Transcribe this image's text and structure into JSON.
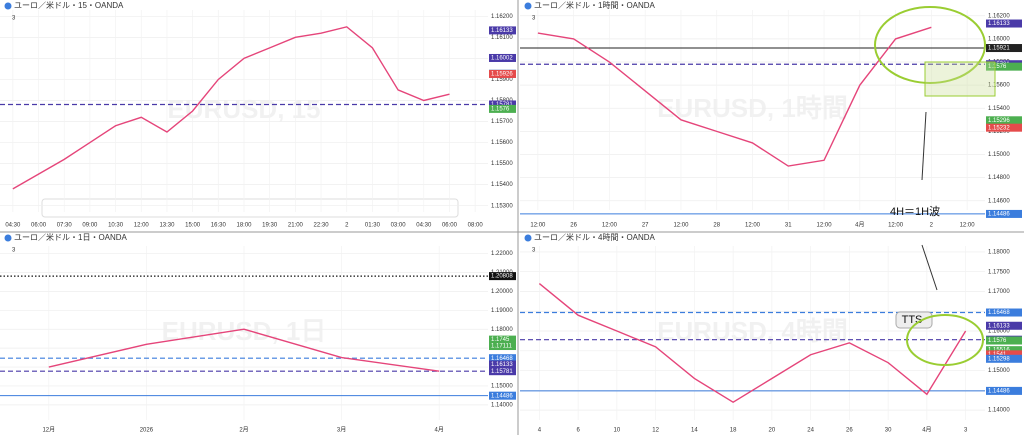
{
  "chart_data": [
    {
      "type": "line",
      "title": "ユーロ／米ドル・15・OANDA",
      "indicators": "3",
      "watermark": "EURUSD, 15",
      "categories": [
        "04:30",
        "06:00",
        "07:30",
        "09:00",
        "10:30",
        "12:00",
        "13:30",
        "15:00",
        "16:30",
        "18:00",
        "19:30",
        "21:00",
        "22:30",
        "2",
        "01:30",
        "03:00",
        "04:30",
        "06:00",
        "08:00"
      ],
      "series": [
        {
          "name": "EURUSD",
          "color": "#e5457a",
          "values": [
            1.1538,
            1.1545,
            1.1552,
            1.156,
            1.1568,
            1.1572,
            1.1565,
            1.1575,
            1.159,
            1.16,
            1.1605,
            1.161,
            1.1612,
            1.1615,
            1.1605,
            1.1585,
            1.158,
            1.1583,
            null
          ]
        }
      ],
      "ylim": [
        1.1527,
        1.1623
      ],
      "yticks": [
        {
          "value": 1.153,
          "label": "1.15300"
        },
        {
          "value": 1.154,
          "label": "1.15400"
        },
        {
          "value": 1.155,
          "label": "1.15500"
        },
        {
          "value": 1.156,
          "label": "1.15600"
        },
        {
          "value": 1.157,
          "label": "1.15700"
        },
        {
          "value": 1.158,
          "label": "1.15800"
        },
        {
          "value": 1.159,
          "label": "1.15900"
        },
        {
          "value": 1.16,
          "label": "1.16000"
        },
        {
          "value": 1.161,
          "label": "1.16100"
        },
        {
          "value": 1.162,
          "label": "1.16200"
        }
      ],
      "price_tags": [
        {
          "value": 1.16133,
          "color": "#4a3aa8"
        },
        {
          "value": 1.16002,
          "color": "#4a3aa8"
        },
        {
          "value": 1.15927,
          "color": "#2f6db5"
        },
        {
          "value": 1.15926,
          "color": "#e54b4b"
        },
        {
          "value": 1.15781,
          "color": "#4a3aa8",
          "line": "dashed"
        },
        {
          "value": 1.1576,
          "color": "#4caf50"
        }
      ],
      "grid": true
    },
    {
      "type": "line",
      "title": "ユーロ／米ドル・1時間・OANDA",
      "indicators": "3",
      "watermark": "EURUSD, 1時間",
      "annotation": "4H＝1H波",
      "categories": [
        "12:00",
        "26",
        "12:00",
        "27",
        "12:00",
        "28",
        "12:00",
        "31",
        "12:00",
        "4月",
        "12:00",
        "2",
        "12:00"
      ],
      "series": [
        {
          "name": "EURUSD",
          "color": "#e5457a",
          "values": [
            1.1605,
            1.16,
            1.158,
            1.1555,
            1.153,
            1.152,
            1.151,
            1.149,
            1.1495,
            1.156,
            1.16,
            1.161,
            null
          ]
        }
      ],
      "ylim": [
        1.1452,
        1.1625
      ],
      "yticks": [
        {
          "value": 1.146,
          "label": "1.14600"
        },
        {
          "value": 1.148,
          "label": "1.14800"
        },
        {
          "value": 1.15,
          "label": "1.15000"
        },
        {
          "value": 1.152,
          "label": "1.15200"
        },
        {
          "value": 1.154,
          "label": "1.15400"
        },
        {
          "value": 1.156,
          "label": "1.15600"
        },
        {
          "value": 1.158,
          "label": "1.15800"
        },
        {
          "value": 1.16,
          "label": "1.16000"
        },
        {
          "value": 1.162,
          "label": "1.16200"
        }
      ],
      "price_tags": [
        {
          "value": 1.16133,
          "color": "#4a3aa8"
        },
        {
          "value": 1.15921,
          "color": "#222222",
          "line": "solid"
        },
        {
          "value": 1.15781,
          "color": "#4a3aa8",
          "line": "dashed"
        },
        {
          "value": 1.1576,
          "color": "#4caf50"
        },
        {
          "value": 1.15296,
          "color": "#4caf50"
        },
        {
          "value": 1.15232,
          "color": "#e54b4b"
        },
        {
          "value": 1.14486,
          "color": "#3b7ddd",
          "line": "solid"
        }
      ],
      "grid": true
    },
    {
      "type": "line",
      "title": "ユーロ／米ドル・1日・OANDA",
      "indicators": "3",
      "watermark": "EURUSD, 1日",
      "categories": [
        "12月",
        "2026",
        "2月",
        "3月",
        "4月"
      ],
      "series": [
        {
          "name": "EURUSD",
          "color": "#e5457a",
          "values": [
            1.16,
            1.172,
            1.18,
            1.165,
            1.1578
          ]
        }
      ],
      "ylim": [
        1.132,
        1.224
      ],
      "yticks": [
        {
          "value": 1.14,
          "label": "1.14000"
        },
        {
          "value": 1.15,
          "label": "1.15000"
        },
        {
          "value": 1.16,
          "label": "1.16000"
        },
        {
          "value": 1.17,
          "label": "1.17000"
        },
        {
          "value": 1.18,
          "label": "1.18000"
        },
        {
          "value": 1.19,
          "label": "1.19000"
        },
        {
          "value": 1.2,
          "label": "1.20000"
        },
        {
          "value": 1.21,
          "label": "1.21000"
        },
        {
          "value": 1.22,
          "label": "1.22000"
        }
      ],
      "price_tags": [
        {
          "value": 1.20808,
          "color": "#111111",
          "line": "dotted"
        },
        {
          "value": 1.1745,
          "color": "#4caf50"
        },
        {
          "value": 1.17111,
          "color": "#4caf50"
        },
        {
          "value": 1.16468,
          "color": "#3b7ddd",
          "line": "dashed"
        },
        {
          "value": 1.16133,
          "color": "#4a3aa8"
        },
        {
          "value": 1.15781,
          "color": "#4a3aa8",
          "line": "dashed"
        },
        {
          "value": 1.14486,
          "color": "#3b7ddd",
          "line": "solid"
        }
      ],
      "grid": true
    },
    {
      "type": "line",
      "title": "ユーロ／米ドル・4時間・OANDA",
      "indicators": "3",
      "watermark": "EURUSD, 4時間",
      "annotation": "TTS",
      "categories": [
        "4",
        "6",
        "10",
        "12",
        "14",
        "18",
        "20",
        "24",
        "26",
        "30",
        "4月",
        "3"
      ],
      "series": [
        {
          "name": "EURUSD",
          "color": "#e5457a",
          "values": [
            1.172,
            1.164,
            1.16,
            1.156,
            1.148,
            1.142,
            1.148,
            1.154,
            1.157,
            1.152,
            1.144,
            1.16
          ]
        }
      ],
      "ylim": [
        1.1375,
        1.1815
      ],
      "yticks": [
        {
          "value": 1.14,
          "label": "1.14000"
        },
        {
          "value": 1.145,
          "label": "1.14500"
        },
        {
          "value": 1.15,
          "label": "1.15000"
        },
        {
          "value": 1.155,
          "label": "1.15500"
        },
        {
          "value": 1.16,
          "label": "1.16000"
        },
        {
          "value": 1.165,
          "label": "1.16500"
        },
        {
          "value": 1.17,
          "label": "1.17000"
        },
        {
          "value": 1.175,
          "label": "1.17500"
        },
        {
          "value": 1.18,
          "label": "1.18000"
        }
      ],
      "price_tags": [
        {
          "value": 1.16468,
          "color": "#3b7ddd",
          "line": "dashed"
        },
        {
          "value": 1.16133,
          "color": "#4a3aa8"
        },
        {
          "value": 1.15781,
          "color": "#4a3aa8",
          "line": "dashed"
        },
        {
          "value": 1.1576,
          "color": "#4caf50"
        },
        {
          "value": 1.15516,
          "color": "#4caf50"
        },
        {
          "value": 1.1541,
          "color": "#e54b4b"
        },
        {
          "value": 1.15298,
          "color": "#3b7ddd"
        },
        {
          "value": 1.14486,
          "color": "#3b7ddd",
          "line": "solid"
        }
      ],
      "grid": true
    }
  ]
}
